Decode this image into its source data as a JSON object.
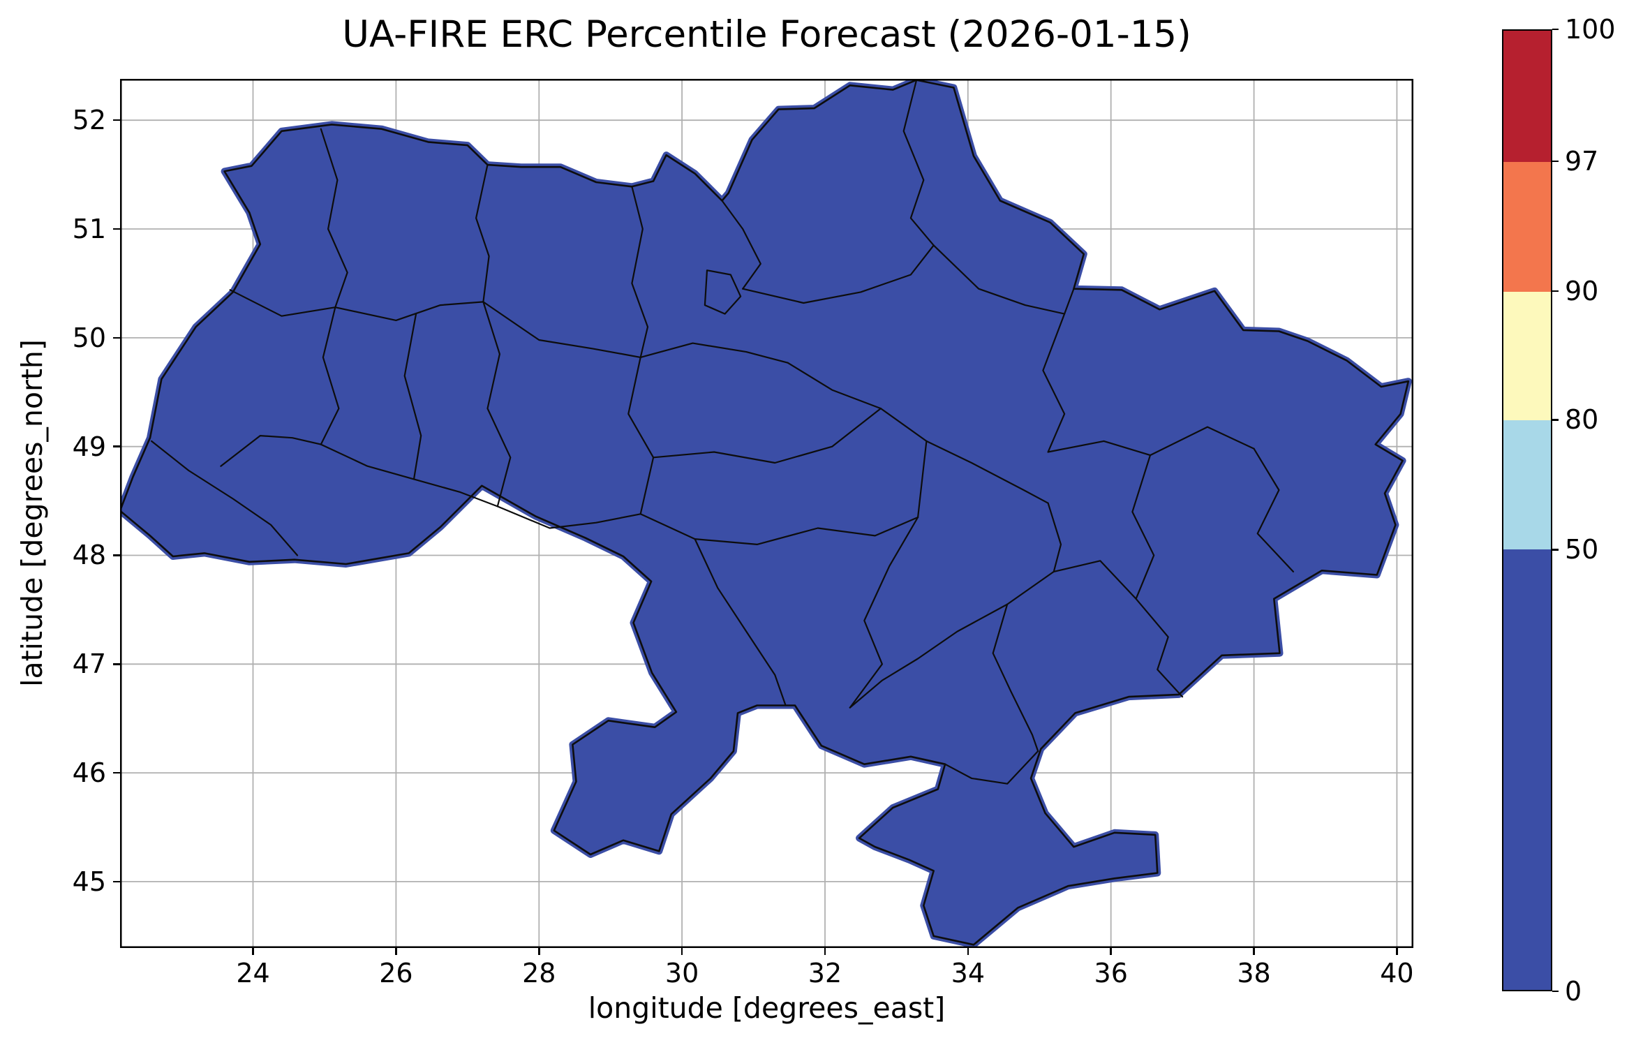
{
  "figure": {
    "title": "UA-FIRE ERC Percentile Forecast (2026-01-15)",
    "xlabel": "longitude [degrees_east]",
    "ylabel": "latitude [degrees_north]",
    "background_color": "#ffffff"
  },
  "chart_data": {
    "type": "heatmap",
    "title": "UA-FIRE ERC Percentile Forecast (2026-01-15)",
    "xlabel": "longitude [degrees_east]",
    "ylabel": "latitude [degrees_north]",
    "xlim": [
      22.14,
      40.23
    ],
    "ylim": [
      44.39,
      52.38
    ],
    "xticks": [
      24,
      26,
      28,
      30,
      32,
      34,
      36,
      38,
      40
    ],
    "yticks": [
      45,
      46,
      47,
      48,
      49,
      50,
      51,
      52
    ],
    "grid": true,
    "grid_color": "#b0b0b0",
    "spine_color": "#000000",
    "boundary_color": "#0d0d0d",
    "field": {
      "description": "Gridded ERC percentile forecast raster covering Ukraine with oblast boundaries; every visible grid cell falls in the lowest percentile bin",
      "uniform_bin": "0-50",
      "fill_color": "#3b4ea6"
    },
    "colorbar": {
      "levels": [
        0,
        50,
        80,
        90,
        97,
        100
      ],
      "tick_labels": [
        "0",
        "50",
        "80",
        "90",
        "97",
        "100"
      ],
      "colors": [
        "#3b4ea6",
        "#a8d8e8",
        "#fdf9bc",
        "#f3764d",
        "#b6202f"
      ],
      "segment_heights_pct": [
        45.9,
        13.5,
        13.4,
        13.5,
        13.7
      ]
    },
    "map_outline": [
      [
        23.6,
        51.53
      ],
      [
        23.98,
        51.58
      ],
      [
        24.4,
        51.9
      ],
      [
        25.1,
        51.96
      ],
      [
        25.8,
        51.92
      ],
      [
        26.45,
        51.8
      ],
      [
        27.0,
        51.77
      ],
      [
        27.28,
        51.59
      ],
      [
        27.75,
        51.57
      ],
      [
        28.3,
        51.57
      ],
      [
        28.8,
        51.43
      ],
      [
        29.3,
        51.39
      ],
      [
        29.6,
        51.44
      ],
      [
        29.78,
        51.68
      ],
      [
        30.18,
        51.51
      ],
      [
        30.56,
        51.26
      ],
      [
        30.65,
        51.33
      ],
      [
        30.98,
        51.82
      ],
      [
        31.35,
        52.1
      ],
      [
        31.85,
        52.11
      ],
      [
        32.35,
        52.32
      ],
      [
        32.95,
        52.28
      ],
      [
        33.28,
        52.37
      ],
      [
        33.8,
        52.3
      ],
      [
        34.08,
        51.67
      ],
      [
        34.45,
        51.26
      ],
      [
        35.15,
        51.06
      ],
      [
        35.62,
        50.77
      ],
      [
        35.48,
        50.45
      ],
      [
        36.15,
        50.44
      ],
      [
        36.68,
        50.26
      ],
      [
        37.45,
        50.43
      ],
      [
        37.85,
        50.07
      ],
      [
        38.35,
        50.06
      ],
      [
        38.75,
        49.97
      ],
      [
        39.3,
        49.79
      ],
      [
        39.78,
        49.55
      ],
      [
        40.16,
        49.6
      ],
      [
        40.05,
        49.3
      ],
      [
        39.7,
        49.02
      ],
      [
        40.08,
        48.87
      ],
      [
        39.83,
        48.57
      ],
      [
        39.98,
        48.28
      ],
      [
        39.72,
        47.82
      ],
      [
        38.95,
        47.86
      ],
      [
        38.28,
        47.6
      ],
      [
        38.36,
        47.1
      ],
      [
        37.55,
        47.08
      ],
      [
        36.95,
        46.72
      ],
      [
        36.25,
        46.7
      ],
      [
        35.5,
        46.55
      ],
      [
        35.02,
        46.22
      ],
      [
        34.88,
        45.95
      ],
      [
        35.08,
        45.63
      ],
      [
        35.48,
        45.32
      ],
      [
        36.05,
        45.45
      ],
      [
        36.62,
        45.43
      ],
      [
        36.65,
        45.08
      ],
      [
        36.05,
        45.03
      ],
      [
        35.4,
        44.96
      ],
      [
        34.7,
        44.76
      ],
      [
        34.08,
        44.42
      ],
      [
        33.52,
        44.5
      ],
      [
        33.38,
        44.78
      ],
      [
        33.52,
        45.1
      ],
      [
        33.18,
        45.2
      ],
      [
        32.7,
        45.32
      ],
      [
        32.48,
        45.4
      ],
      [
        32.95,
        45.68
      ],
      [
        33.58,
        45.85
      ],
      [
        33.68,
        46.08
      ],
      [
        33.2,
        46.15
      ],
      [
        32.55,
        46.08
      ],
      [
        31.95,
        46.25
      ],
      [
        31.58,
        46.62
      ],
      [
        31.05,
        46.62
      ],
      [
        30.78,
        46.55
      ],
      [
        30.72,
        46.2
      ],
      [
        30.4,
        45.95
      ],
      [
        29.85,
        45.62
      ],
      [
        29.68,
        45.28
      ],
      [
        29.18,
        45.38
      ],
      [
        28.72,
        45.25
      ],
      [
        28.21,
        45.47
      ],
      [
        28.52,
        45.92
      ],
      [
        28.47,
        46.26
      ],
      [
        28.97,
        46.48
      ],
      [
        29.62,
        46.42
      ],
      [
        29.92,
        46.56
      ],
      [
        29.58,
        46.92
      ],
      [
        29.32,
        47.38
      ],
      [
        29.57,
        47.76
      ],
      [
        29.18,
        47.99
      ],
      [
        28.65,
        48.16
      ],
      [
        27.95,
        48.36
      ],
      [
        27.2,
        48.64
      ],
      [
        26.62,
        48.26
      ],
      [
        26.18,
        48.02
      ],
      [
        25.3,
        47.92
      ],
      [
        24.58,
        47.96
      ],
      [
        23.95,
        47.94
      ],
      [
        23.32,
        48.02
      ],
      [
        22.88,
        47.99
      ],
      [
        22.56,
        48.18
      ],
      [
        22.14,
        48.41
      ],
      [
        22.32,
        48.72
      ],
      [
        22.56,
        49.08
      ],
      [
        22.72,
        49.62
      ],
      [
        23.2,
        50.1
      ],
      [
        23.72,
        50.42
      ],
      [
        24.1,
        50.86
      ],
      [
        23.95,
        51.15
      ]
    ],
    "map_boundaries": [
      [
        [
          24.95,
          51.92
        ],
        [
          25.18,
          51.45
        ],
        [
          25.05,
          51.0
        ],
        [
          25.32,
          50.6
        ],
        [
          25.15,
          50.28
        ]
      ],
      [
        [
          23.68,
          50.44
        ],
        [
          24.4,
          50.2
        ],
        [
          25.15,
          50.28
        ],
        [
          26.0,
          50.16
        ],
        [
          26.62,
          50.3
        ],
        [
          27.22,
          50.33
        ]
      ],
      [
        [
          27.28,
          51.59
        ],
        [
          27.12,
          51.1
        ],
        [
          27.3,
          50.75
        ],
        [
          27.22,
          50.33
        ]
      ],
      [
        [
          25.15,
          50.28
        ],
        [
          24.98,
          49.82
        ],
        [
          25.2,
          49.35
        ],
        [
          24.95,
          49.02
        ]
      ],
      [
        [
          23.55,
          48.82
        ],
        [
          24.1,
          49.1
        ],
        [
          24.55,
          49.08
        ],
        [
          24.95,
          49.02
        ]
      ],
      [
        [
          22.58,
          49.05
        ],
        [
          23.1,
          48.78
        ],
        [
          23.72,
          48.52
        ],
        [
          24.25,
          48.28
        ],
        [
          24.62,
          48.0
        ]
      ],
      [
        [
          24.95,
          49.02
        ],
        [
          25.6,
          48.82
        ],
        [
          26.25,
          48.7
        ],
        [
          26.9,
          48.58
        ],
        [
          27.42,
          48.45
        ]
      ],
      [
        [
          26.28,
          50.22
        ],
        [
          26.12,
          49.65
        ],
        [
          26.35,
          49.1
        ],
        [
          26.25,
          48.7
        ]
      ],
      [
        [
          27.22,
          50.33
        ],
        [
          27.45,
          49.85
        ],
        [
          27.28,
          49.35
        ],
        [
          27.6,
          48.9
        ],
        [
          27.42,
          48.45
        ]
      ],
      [
        [
          27.22,
          50.33
        ],
        [
          28.0,
          49.98
        ],
        [
          28.75,
          49.9
        ],
        [
          29.42,
          49.82
        ]
      ],
      [
        [
          29.3,
          51.39
        ],
        [
          29.45,
          51.0
        ],
        [
          29.3,
          50.5
        ],
        [
          29.52,
          50.1
        ],
        [
          29.42,
          49.82
        ]
      ],
      [
        [
          30.56,
          51.26
        ],
        [
          30.85,
          51.0
        ],
        [
          31.1,
          50.68
        ],
        [
          30.85,
          50.45
        ]
      ],
      [
        [
          30.85,
          50.45
        ],
        [
          31.7,
          50.32
        ],
        [
          32.5,
          50.42
        ],
        [
          33.2,
          50.58
        ],
        [
          33.52,
          50.85
        ]
      ],
      [
        [
          33.28,
          52.37
        ],
        [
          33.1,
          51.9
        ],
        [
          33.38,
          51.45
        ],
        [
          33.2,
          51.1
        ],
        [
          33.52,
          50.85
        ]
      ],
      [
        [
          33.52,
          50.85
        ],
        [
          34.15,
          50.45
        ],
        [
          34.8,
          50.3
        ],
        [
          35.35,
          50.22
        ],
        [
          35.48,
          50.45
        ]
      ],
      [
        [
          29.42,
          49.82
        ],
        [
          30.15,
          49.95
        ],
        [
          30.9,
          49.87
        ],
        [
          31.48,
          49.77
        ]
      ],
      [
        [
          31.48,
          49.77
        ],
        [
          32.1,
          49.52
        ],
        [
          32.78,
          49.35
        ],
        [
          33.42,
          49.05
        ],
        [
          34.05,
          48.85
        ],
        [
          34.78,
          48.6
        ],
        [
          35.12,
          48.48
        ]
      ],
      [
        [
          35.35,
          50.22
        ],
        [
          35.05,
          49.7
        ],
        [
          35.35,
          49.3
        ],
        [
          35.12,
          48.95
        ]
      ],
      [
        [
          29.42,
          49.82
        ],
        [
          29.25,
          49.3
        ],
        [
          29.6,
          48.9
        ],
        [
          29.42,
          48.38
        ]
      ],
      [
        [
          29.6,
          48.9
        ],
        [
          30.45,
          48.95
        ],
        [
          31.3,
          48.85
        ],
        [
          32.1,
          49.0
        ],
        [
          32.78,
          49.35
        ]
      ],
      [
        [
          27.42,
          48.45
        ],
        [
          28.15,
          48.25
        ],
        [
          28.8,
          48.3
        ],
        [
          29.42,
          48.38
        ]
      ],
      [
        [
          29.42,
          48.38
        ],
        [
          30.18,
          48.15
        ],
        [
          30.5,
          47.7
        ],
        [
          30.9,
          47.3
        ],
        [
          31.3,
          46.9
        ],
        [
          31.45,
          46.62
        ]
      ],
      [
        [
          30.18,
          48.15
        ],
        [
          31.05,
          48.1
        ],
        [
          31.9,
          48.25
        ],
        [
          32.7,
          48.18
        ],
        [
          33.3,
          48.35
        ]
      ],
      [
        [
          33.3,
          48.35
        ],
        [
          32.9,
          47.9
        ],
        [
          32.55,
          47.4
        ],
        [
          32.8,
          47.0
        ],
        [
          32.35,
          46.6
        ]
      ],
      [
        [
          35.12,
          48.48
        ],
        [
          35.3,
          48.1
        ],
        [
          35.2,
          47.85
        ],
        [
          34.55,
          47.55
        ],
        [
          33.85,
          47.3
        ],
        [
          33.3,
          47.05
        ],
        [
          32.8,
          46.85
        ],
        [
          32.35,
          46.6
        ]
      ],
      [
        [
          33.3,
          48.35
        ],
        [
          33.42,
          49.05
        ]
      ],
      [
        [
          35.12,
          48.95
        ],
        [
          35.9,
          49.05
        ],
        [
          36.55,
          48.92
        ],
        [
          37.35,
          49.18
        ],
        [
          38.0,
          48.98
        ]
      ],
      [
        [
          38.0,
          48.98
        ],
        [
          38.35,
          48.6
        ],
        [
          38.05,
          48.2
        ],
        [
          38.55,
          47.85
        ]
      ],
      [
        [
          36.55,
          48.92
        ],
        [
          36.3,
          48.4
        ],
        [
          36.6,
          48.0
        ],
        [
          36.35,
          47.6
        ]
      ],
      [
        [
          35.2,
          47.85
        ],
        [
          35.85,
          47.95
        ],
        [
          36.35,
          47.6
        ]
      ],
      [
        [
          36.35,
          47.6
        ],
        [
          36.8,
          47.25
        ],
        [
          36.65,
          46.95
        ],
        [
          37.0,
          46.7
        ]
      ],
      [
        [
          34.55,
          47.55
        ],
        [
          34.35,
          47.1
        ],
        [
          34.6,
          46.75
        ],
        [
          34.9,
          46.35
        ],
        [
          34.98,
          46.2
        ]
      ],
      [
        [
          33.68,
          46.08
        ],
        [
          34.05,
          45.95
        ],
        [
          34.55,
          45.9
        ],
        [
          34.98,
          46.2
        ]
      ],
      [
        [
          30.35,
          50.62
        ],
        [
          30.68,
          50.58
        ],
        [
          30.82,
          50.38
        ],
        [
          30.6,
          50.22
        ],
        [
          30.32,
          50.3
        ],
        [
          30.35,
          50.62
        ]
      ]
    ]
  }
}
